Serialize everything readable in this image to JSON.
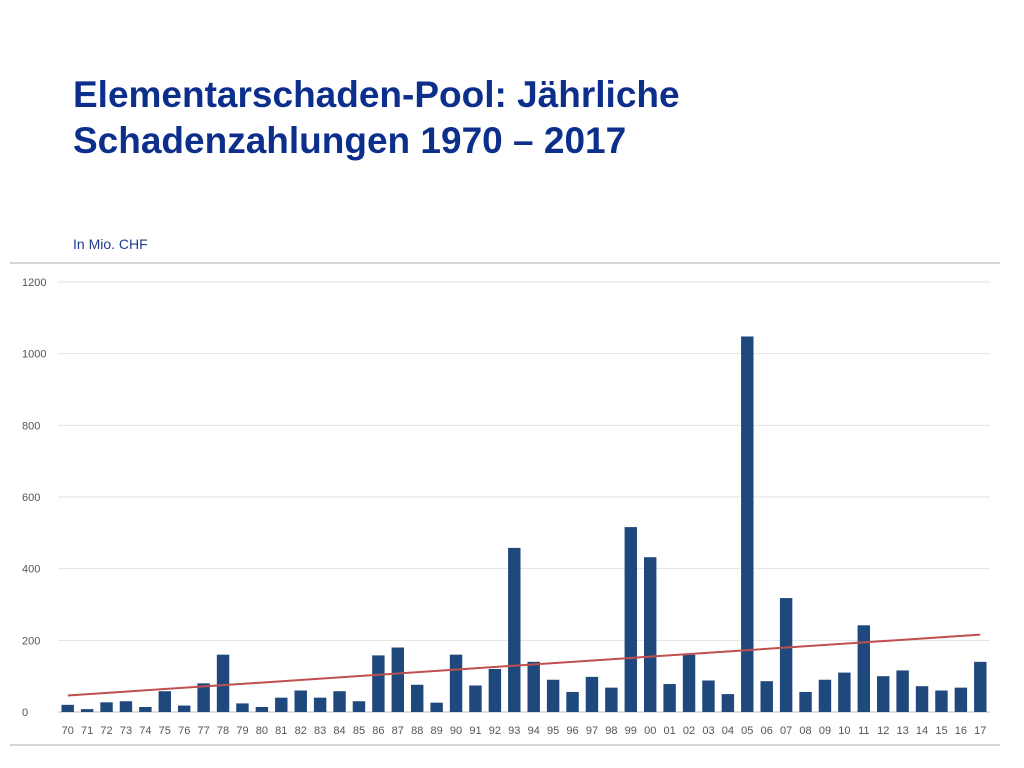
{
  "title_line1": "Elementarschaden-Pool: Jährliche",
  "title_line2": "Schadenzahlungen 1970 – 2017",
  "subtitle": "In Mio. CHF",
  "colors": {
    "bar": "#1f497d",
    "trend": "#c0504d",
    "title": "#0d2f8c"
  },
  "chart_data": {
    "type": "bar",
    "categories": [
      "70",
      "71",
      "72",
      "73",
      "74",
      "75",
      "76",
      "77",
      "78",
      "79",
      "80",
      "81",
      "82",
      "83",
      "84",
      "85",
      "86",
      "87",
      "88",
      "89",
      "90",
      "91",
      "92",
      "93",
      "94",
      "95",
      "96",
      "97",
      "98",
      "99",
      "00",
      "01",
      "02",
      "03",
      "04",
      "05",
      "06",
      "07",
      "08",
      "09",
      "10",
      "11",
      "12",
      "13",
      "14",
      "15",
      "16",
      "17"
    ],
    "values": [
      20,
      8,
      27,
      30,
      14,
      58,
      18,
      80,
      160,
      24,
      14,
      40,
      60,
      40,
      58,
      30,
      158,
      180,
      76,
      26,
      160,
      74,
      120,
      458,
      140,
      90,
      56,
      98,
      68,
      516,
      432,
      78,
      160,
      88,
      50,
      1048,
      86,
      318,
      56,
      90,
      110,
      242,
      100,
      116,
      72,
      60,
      68,
      140
    ],
    "trend": {
      "name": "",
      "start": 46,
      "end": 216
    },
    "yticks": [
      0,
      200,
      400,
      600,
      800,
      1000,
      1200
    ],
    "ylim": [
      0,
      1200
    ],
    "xlabel": "",
    "ylabel": "",
    "grid": true,
    "legend": "none"
  }
}
